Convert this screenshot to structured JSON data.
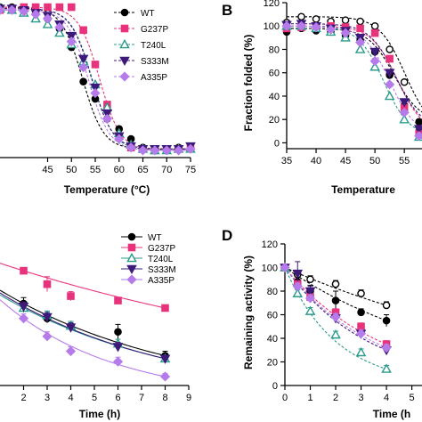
{
  "panels": [
    "A",
    "B",
    "C",
    "D"
  ],
  "series_styles": {
    "WT": {
      "color": "#000000",
      "marker": "circle",
      "fill": true
    },
    "G237P": {
      "color": "#e8337c",
      "marker": "square",
      "fill": true
    },
    "T240L": {
      "color": "#2a9b8a",
      "marker": "triangle",
      "fill": false
    },
    "S333M": {
      "color": "#3d1a7a",
      "marker": "tri-down",
      "fill": true
    },
    "A335P": {
      "color": "#b57bea",
      "marker": "diamond",
      "fill": true
    }
  },
  "chart_data": [
    {
      "panel": "A",
      "type": "scatter",
      "xlabel": "Temperature (°C)",
      "ylabel": "",
      "xlim": [
        35,
        75
      ],
      "ylim": [
        -5,
        105
      ],
      "xticks": [
        "45",
        "50",
        "55",
        "60",
        "65",
        "70",
        "75"
      ],
      "legend": "top-right",
      "series": [
        {
          "name": "WT",
          "x": [
            35,
            37.5,
            40,
            42.5,
            45,
            47.5,
            50,
            52.5,
            55,
            57.5,
            60,
            62.5,
            65,
            67.5,
            70,
            72.5,
            75
          ],
          "y": [
            100,
            100,
            99,
            97,
            92,
            85,
            72,
            48,
            36,
            22,
            15,
            8,
            2,
            1,
            1,
            2,
            2
          ]
        },
        {
          "name": "G237P",
          "x": [
            35,
            37.5,
            40,
            42.5,
            45,
            47.5,
            50,
            52.5,
            55,
            57.5,
            60,
            62.5,
            65,
            67.5,
            70,
            72.5,
            75
          ],
          "y": [
            98,
            99,
            100,
            100,
            100,
            100,
            100,
            84,
            60,
            32,
            10,
            2,
            1,
            0,
            1,
            1,
            2
          ]
        },
        {
          "name": "T240L",
          "x": [
            35,
            37.5,
            40,
            42.5,
            45,
            47.5,
            50,
            52.5,
            55,
            57.5,
            60,
            62.5,
            65,
            67.5,
            70,
            72.5,
            75
          ],
          "y": [
            99,
            98,
            96,
            92,
            88,
            82,
            74,
            62,
            46,
            30,
            12,
            4,
            1,
            0,
            0,
            1,
            1
          ]
        },
        {
          "name": "S333M",
          "x": [
            35,
            37.5,
            40,
            42.5,
            45,
            47.5,
            50,
            52.5,
            55,
            57.5,
            60,
            62.5,
            65,
            67.5,
            70,
            72.5,
            75
          ],
          "y": [
            99,
            99,
            98,
            96,
            94,
            88,
            80,
            64,
            44,
            26,
            10,
            3,
            1,
            1,
            1,
            1,
            3
          ]
        },
        {
          "name": "A335P",
          "x": [
            35,
            37.5,
            40,
            42.5,
            45,
            47.5,
            50,
            52.5,
            55,
            57.5,
            60,
            62.5,
            65,
            67.5,
            70,
            72.5,
            75
          ],
          "y": [
            98,
            98,
            97,
            95,
            92,
            86,
            76,
            58,
            40,
            22,
            8,
            2,
            0,
            0,
            0,
            0,
            1
          ]
        }
      ]
    },
    {
      "panel": "B",
      "type": "scatter",
      "xlabel": "Temperature",
      "ylabel": "Fraction folded (%)",
      "xlim": [
        35,
        58
      ],
      "ylim": [
        -5,
        120
      ],
      "xticks": [
        "35",
        "40",
        "45",
        "50",
        "55"
      ],
      "yticks": [
        "0",
        "20",
        "40",
        "60",
        "80",
        "100",
        "120"
      ],
      "series": [
        {
          "name": "WT",
          "x": [
            35,
            37.5,
            40,
            42.5,
            45,
            47.5,
            50,
            52.5,
            55,
            57.5
          ],
          "y": [
            95,
            98,
            96,
            95,
            92,
            88,
            78,
            58,
            32,
            18
          ]
        },
        {
          "name": "WT (open)",
          "x": [
            35,
            37.5,
            40,
            42.5,
            45,
            47.5,
            50,
            52.5,
            55,
            57.5
          ],
          "y": [
            103,
            108,
            106,
            104,
            105,
            104,
            100,
            80,
            52,
            10
          ]
        },
        {
          "name": "G237P",
          "x": [
            35,
            37.5,
            40,
            42.5,
            45,
            47.5,
            50,
            52.5,
            55,
            57.5
          ],
          "y": [
            98,
            99,
            100,
            100,
            99,
            98,
            94,
            72,
            30,
            8
          ]
        },
        {
          "name": "T240L",
          "x": [
            35,
            37.5,
            40,
            42.5,
            45,
            47.5,
            50,
            52.5,
            55,
            57.5
          ],
          "y": [
            100,
            100,
            98,
            95,
            90,
            80,
            65,
            40,
            20,
            5
          ]
        },
        {
          "name": "S333M",
          "x": [
            35,
            37.5,
            40,
            42.5,
            45,
            47.5,
            50,
            52.5,
            55,
            57.5
          ],
          "y": [
            101,
            102,
            100,
            98,
            96,
            90,
            78,
            60,
            35,
            12
          ]
        },
        {
          "name": "A335P",
          "x": [
            35,
            37.5,
            40,
            42.5,
            45,
            47.5,
            50,
            52.5,
            55,
            57.5
          ],
          "y": [
            100,
            100,
            99,
            97,
            94,
            86,
            70,
            50,
            26,
            6
          ]
        }
      ]
    },
    {
      "panel": "C",
      "type": "scatter",
      "xlabel": "Time (h)",
      "ylabel": "",
      "xlim": [
        1,
        9
      ],
      "ylim": [
        10,
        105
      ],
      "xticks": [
        "2",
        "3",
        "4",
        "5",
        "6",
        "7",
        "8",
        "9"
      ],
      "legend": "top-right",
      "series": [
        {
          "name": "WT",
          "x": [
            2,
            3,
            4,
            6,
            8
          ],
          "y": [
            65,
            55,
            50,
            46,
            30
          ],
          "err": [
            4,
            3,
            3,
            5,
            3
          ]
        },
        {
          "name": "G237P",
          "x": [
            2,
            3,
            4,
            6,
            8
          ],
          "y": [
            87,
            78,
            70,
            67,
            62
          ],
          "err": [
            2,
            5,
            3,
            2,
            2
          ]
        },
        {
          "name": "T240L",
          "x": [
            2,
            3,
            4,
            6,
            8
          ],
          "y": [
            62,
            57,
            50,
            38,
            28
          ],
          "err": [
            3,
            3,
            3,
            3,
            2
          ]
        },
        {
          "name": "S333M",
          "x": [
            2,
            3,
            4,
            6,
            8
          ],
          "y": [
            63,
            56,
            49,
            36,
            28
          ],
          "err": [
            3,
            3,
            3,
            3,
            2
          ]
        },
        {
          "name": "A335P",
          "x": [
            2,
            3,
            4,
            6,
            8
          ],
          "y": [
            55,
            43,
            33,
            26,
            16
          ],
          "err": [
            3,
            3,
            3,
            3,
            2
          ]
        }
      ]
    },
    {
      "panel": "D",
      "type": "scatter",
      "xlabel": "Time (h",
      "ylabel": "Remaining activity (%)",
      "xlim": [
        0,
        5.4
      ],
      "ylim": [
        0,
        120
      ],
      "xticks": [
        "0",
        "1",
        "2",
        "3",
        "4",
        "5"
      ],
      "yticks": [
        "0",
        "20",
        "40",
        "60",
        "80",
        "100",
        "120"
      ],
      "series": [
        {
          "name": "WT",
          "x": [
            0,
            0.5,
            1,
            2,
            3,
            4
          ],
          "y": [
            100,
            88,
            80,
            72,
            62,
            55
          ],
          "err": [
            0,
            5,
            5,
            8,
            3,
            5
          ]
        },
        {
          "name": "WT (open)",
          "x": [
            0,
            0.5,
            1,
            2,
            3,
            4
          ],
          "y": [
            100,
            94,
            90,
            86,
            78,
            68
          ],
          "err": [
            0,
            3,
            3,
            3,
            3,
            3
          ]
        },
        {
          "name": "G237P",
          "x": [
            0,
            0.5,
            1,
            2,
            3,
            4
          ],
          "y": [
            100,
            86,
            75,
            62,
            50,
            35
          ],
          "err": [
            0,
            3,
            3,
            3,
            3,
            3
          ]
        },
        {
          "name": "T240L",
          "x": [
            0,
            0.5,
            1,
            2,
            3,
            4
          ],
          "y": [
            100,
            78,
            63,
            43,
            28,
            14
          ],
          "err": [
            0,
            3,
            3,
            3,
            3,
            3
          ]
        },
        {
          "name": "S333M",
          "x": [
            0,
            0.5,
            1,
            2,
            3,
            4
          ],
          "y": [
            100,
            95,
            80,
            57,
            44,
            30
          ],
          "err": [
            0,
            10,
            4,
            3,
            3,
            3
          ]
        },
        {
          "name": "A335P",
          "x": [
            0,
            0.5,
            1,
            2,
            3,
            4
          ],
          "y": [
            100,
            84,
            74,
            58,
            44,
            32
          ],
          "err": [
            0,
            3,
            3,
            3,
            3,
            3
          ]
        }
      ]
    }
  ]
}
